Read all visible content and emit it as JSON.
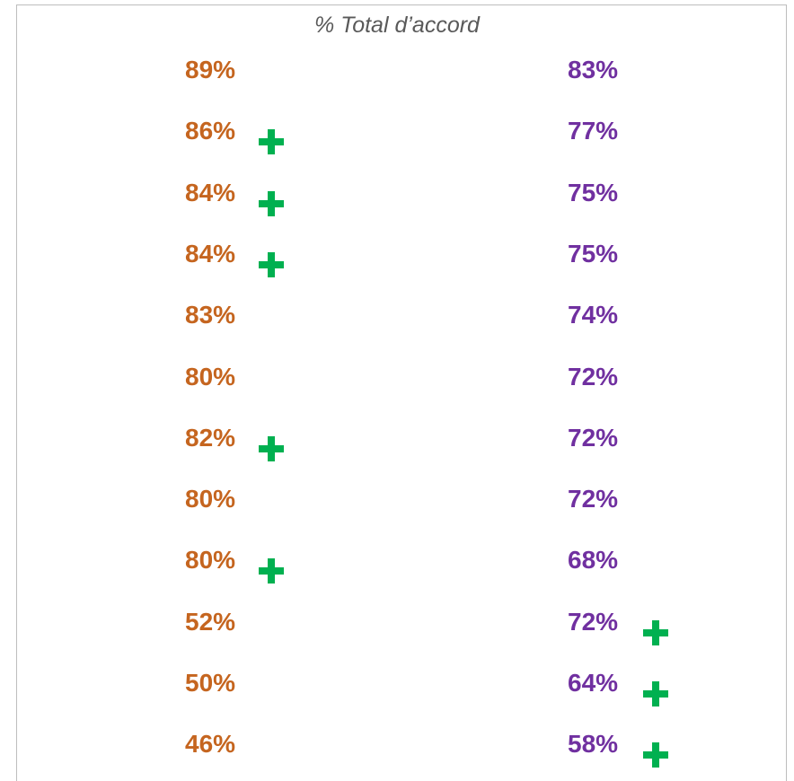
{
  "header": {
    "title": "% Total d’accord"
  },
  "table": {
    "left_color": "#c5651f",
    "right_color": "#7030a0",
    "plus_color": "#00b050",
    "rows": [
      {
        "left": "89%",
        "left_plus": false,
        "right": "83%",
        "right_plus": false
      },
      {
        "left": "86%",
        "left_plus": true,
        "right": "77%",
        "right_plus": false
      },
      {
        "left": "84%",
        "left_plus": true,
        "right": "75%",
        "right_plus": false
      },
      {
        "left": "84%",
        "left_plus": true,
        "right": "75%",
        "right_plus": false
      },
      {
        "left": "83%",
        "left_plus": false,
        "right": "74%",
        "right_plus": false
      },
      {
        "left": "80%",
        "left_plus": false,
        "right": "72%",
        "right_plus": false
      },
      {
        "left": "82%",
        "left_plus": true,
        "right": "72%",
        "right_plus": false
      },
      {
        "left": "80%",
        "left_plus": false,
        "right": "72%",
        "right_plus": false
      },
      {
        "left": "80%",
        "left_plus": true,
        "right": "68%",
        "right_plus": false
      },
      {
        "left": "52%",
        "left_plus": false,
        "right": "72%",
        "right_plus": true
      },
      {
        "left": "50%",
        "left_plus": false,
        "right": "64%",
        "right_plus": true
      },
      {
        "left": "46%",
        "left_plus": false,
        "right": "58%",
        "right_plus": true
      }
    ]
  }
}
